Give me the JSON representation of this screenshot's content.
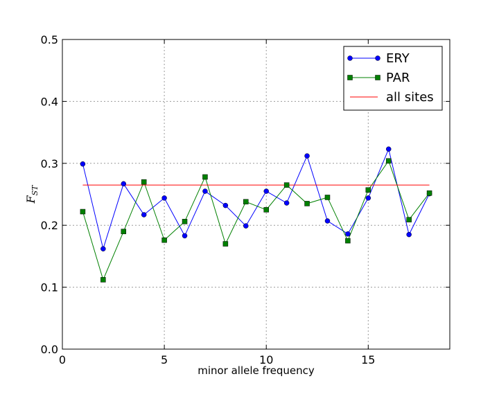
{
  "chart_data": {
    "type": "line",
    "xlabel": "minor allele frequency",
    "ylabel": "F",
    "ylabel_subscript": "ST",
    "xlim": [
      0,
      19
    ],
    "ylim": [
      0,
      0.5
    ],
    "xticks": [
      "0",
      "5",
      "10",
      "15"
    ],
    "xtick_values": [
      0,
      5,
      10,
      15
    ],
    "yticks": [
      "0.0",
      "0.1",
      "0.2",
      "0.3",
      "0.4",
      "0.5"
    ],
    "ytick_values": [
      0,
      0.1,
      0.2,
      0.3,
      0.4,
      0.5
    ],
    "grid": true,
    "legend_position": "top-right",
    "x": [
      1,
      2,
      3,
      4,
      5,
      6,
      7,
      8,
      9,
      10,
      11,
      12,
      13,
      14,
      15,
      16,
      17,
      18
    ],
    "series": [
      {
        "name": "ERY",
        "color": "#0000ff",
        "marker": "circle",
        "values": [
          0.299,
          0.162,
          0.267,
          0.217,
          0.244,
          0.183,
          0.255,
          0.232,
          0.199,
          0.255,
          0.236,
          0.312,
          0.207,
          0.186,
          0.244,
          0.323,
          0.185,
          0.251
        ]
      },
      {
        "name": "PAR",
        "color": "#008000",
        "marker": "square",
        "values": [
          0.222,
          0.112,
          0.19,
          0.27,
          0.176,
          0.206,
          0.278,
          0.17,
          0.238,
          0.225,
          0.265,
          0.235,
          0.245,
          0.175,
          0.257,
          0.304,
          0.209,
          0.252
        ]
      },
      {
        "name": "all sites",
        "color": "#ff0000",
        "marker": "none",
        "x": [
          1,
          18
        ],
        "values": [
          0.265,
          0.265
        ]
      }
    ]
  }
}
